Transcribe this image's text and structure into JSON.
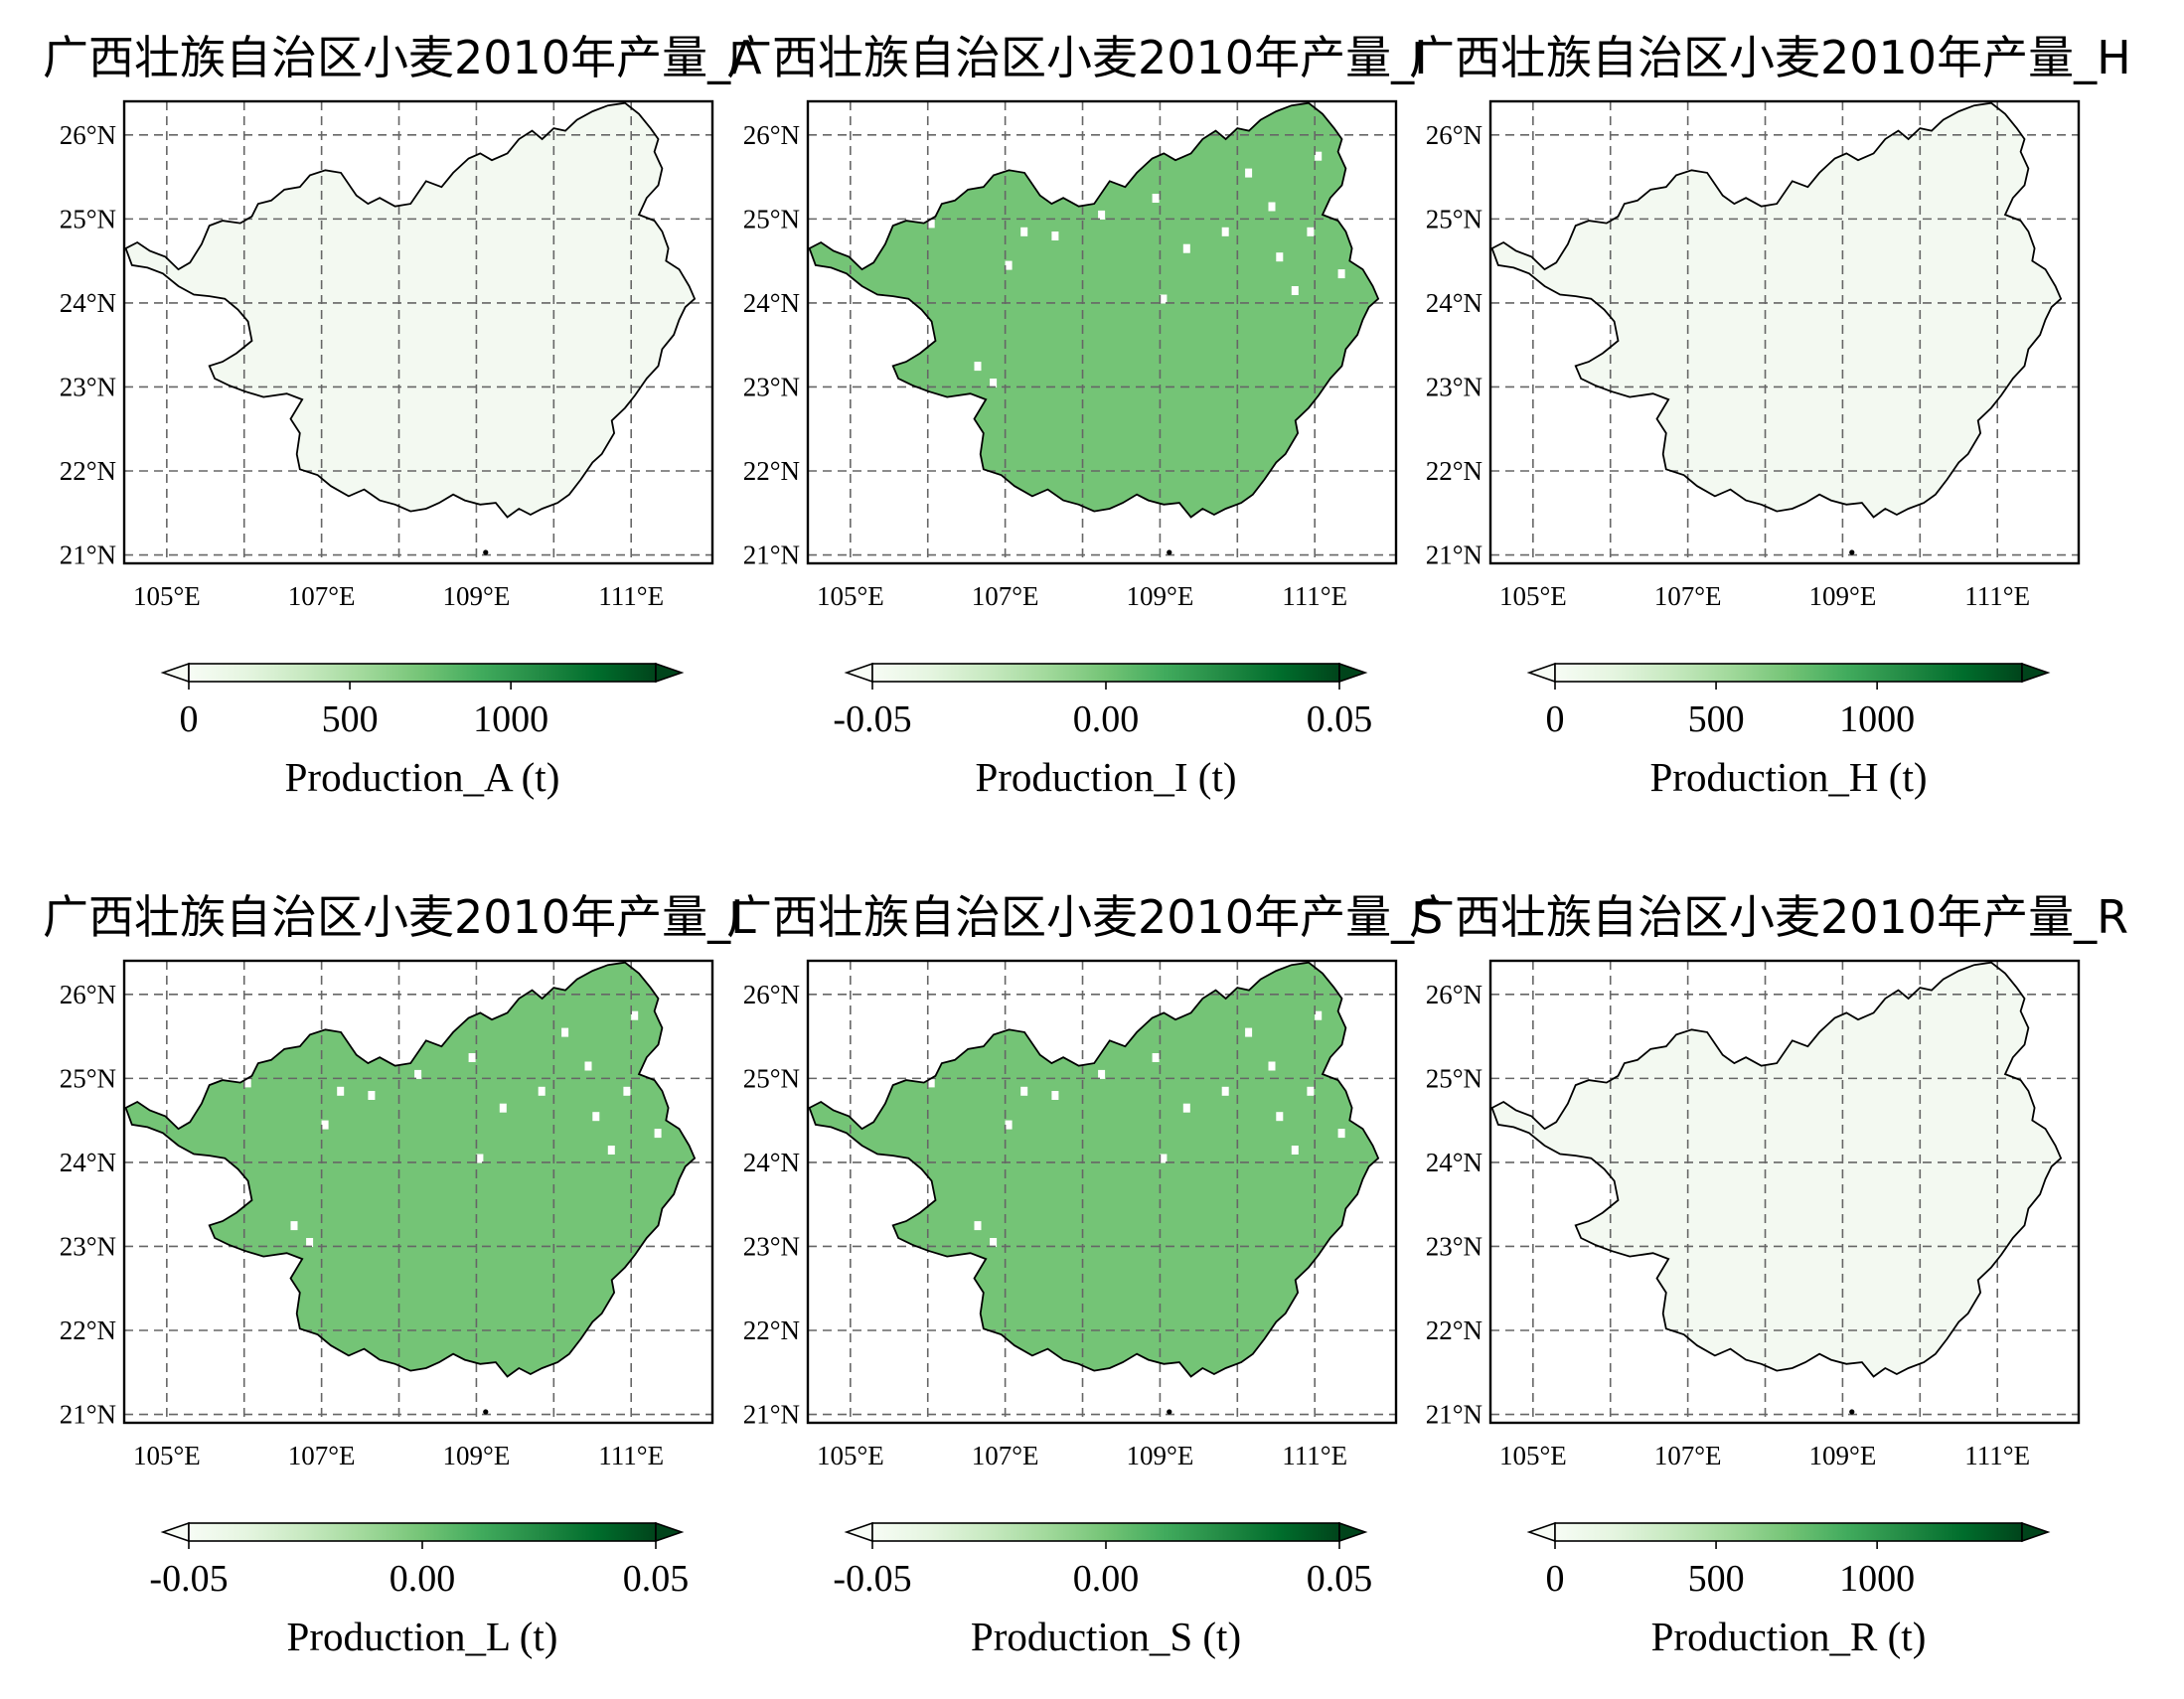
{
  "colors": {
    "empty_fill": "#f3f9f1",
    "uniform_fill": "#74c476",
    "gap_fill": "#ffffff",
    "border": "#000000",
    "grid": "#666666",
    "colormap": [
      "#f7fcf5",
      "#e5f5e0",
      "#c7e9c0",
      "#a1d99b",
      "#74c476",
      "#41ab5d",
      "#238b45",
      "#006d2c",
      "#00441b"
    ]
  },
  "axis_ticks": {
    "lon": [
      105,
      107,
      109,
      111
    ],
    "lat": [
      21,
      22,
      23,
      24,
      25,
      26
    ],
    "lon_labels": [
      "105°E",
      "107°E",
      "109°E",
      "111°E"
    ],
    "lat_labels": [
      "21°N",
      "22°N",
      "23°N",
      "24°N",
      "25°N",
      "26°N"
    ]
  },
  "panels": [
    {
      "title": "广西壮族自治区小麦2010年产量_A",
      "colorbar_label": "Production_A (t)",
      "colorbar_ticks": [
        "0",
        "500",
        "1000"
      ],
      "colorbar_tick_values": [
        0,
        500,
        1000
      ],
      "colorbar_range": [
        0,
        1450
      ],
      "extend": "both",
      "fill": "empty"
    },
    {
      "title": "广西壮族自治区小麦2010年产量_I",
      "colorbar_label": "Production_I (t)",
      "colorbar_ticks": [
        "-0.05",
        "0.00",
        "0.05"
      ],
      "colorbar_tick_values": [
        -0.05,
        0,
        0.05
      ],
      "colorbar_range": [
        -0.05,
        0.05
      ],
      "extend": "both",
      "fill": "uniform"
    },
    {
      "title": "广西壮族自治区小麦2010年产量_H",
      "colorbar_label": "Production_H (t)",
      "colorbar_ticks": [
        "0",
        "500",
        "1000"
      ],
      "colorbar_tick_values": [
        0,
        500,
        1000
      ],
      "colorbar_range": [
        0,
        1450
      ],
      "extend": "both",
      "fill": "empty"
    },
    {
      "title": "广西壮族自治区小麦2010年产量_L",
      "colorbar_label": "Production_L (t)",
      "colorbar_ticks": [
        "-0.05",
        "0.00",
        "0.05"
      ],
      "colorbar_tick_values": [
        -0.05,
        0,
        0.05
      ],
      "colorbar_range": [
        -0.05,
        0.05
      ],
      "extend": "both",
      "fill": "uniform"
    },
    {
      "title": "广西壮族自治区小麦2010年产量_S",
      "colorbar_label": "Production_S (t)",
      "colorbar_ticks": [
        "-0.05",
        "0.00",
        "0.05"
      ],
      "colorbar_tick_values": [
        -0.05,
        0,
        0.05
      ],
      "colorbar_range": [
        -0.05,
        0.05
      ],
      "extend": "both",
      "fill": "uniform"
    },
    {
      "title": "广西壮族自治区小麦2010年产量_R",
      "colorbar_label": "Production_R (t)",
      "colorbar_ticks": [
        "0",
        "500",
        "1000"
      ],
      "colorbar_tick_values": [
        0,
        500,
        1000
      ],
      "colorbar_range": [
        0,
        1450
      ],
      "extend": "both",
      "fill": "empty"
    }
  ]
}
